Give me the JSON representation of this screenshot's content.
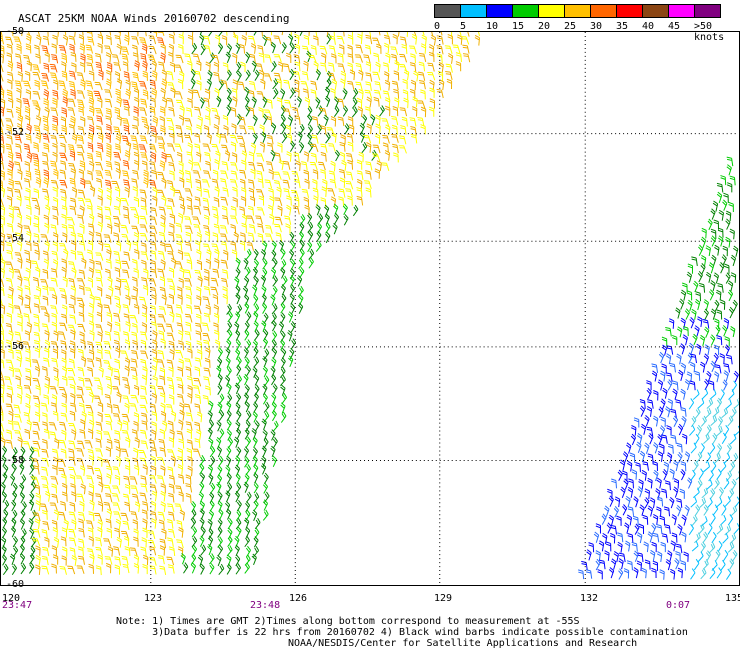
{
  "title": "ASCAT 25KM NOAA Winds 20160702 descending",
  "legend": {
    "swatches": [
      {
        "label": "0",
        "color": "#555555"
      },
      {
        "label": "5",
        "color": "#00bfff"
      },
      {
        "label": "10",
        "color": "#0000ff"
      },
      {
        "label": "15",
        "color": "#00cc00"
      },
      {
        "label": "20",
        "color": "#ffff00"
      },
      {
        "label": "25",
        "color": "#ffc000"
      },
      {
        "label": "30",
        "color": "#ff6600"
      },
      {
        "label": "35",
        "color": "#ff0000"
      },
      {
        "label": "40",
        "color": "#8b4513"
      },
      {
        "label": "45",
        "color": "#ff00ff"
      },
      {
        "label": ">50 knots",
        "color": "#800080"
      }
    ]
  },
  "map": {
    "lat_labels": [
      "-50",
      "-52",
      "-54",
      "-56",
      "-58",
      "-60"
    ],
    "lon_labels": [
      "120",
      "123",
      "126",
      "129",
      "132",
      "135"
    ],
    "pass_times": [
      "23:47",
      "23:48",
      "0:07"
    ],
    "lon_range": [
      120,
      135
    ],
    "lat_range": [
      -50,
      -60
    ],
    "grid": "dotted"
  },
  "notes": "Note: 1) Times are GMT 2)Times along bottom correspond to measurement at -55S\n      3)Data buffer is 22 hrs from 20160702 4) Black wind barbs indicate possible contamination",
  "credit": "NOAA/NESDIS/Center for Satellite Applications and Research"
}
